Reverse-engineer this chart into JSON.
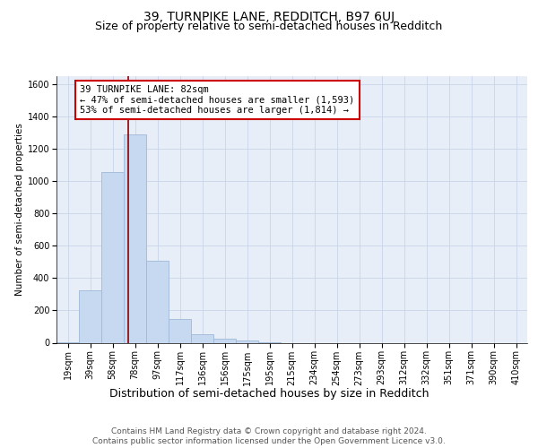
{
  "title": "39, TURNPIKE LANE, REDDITCH, B97 6UJ",
  "subtitle": "Size of property relative to semi-detached houses in Redditch",
  "xlabel": "Distribution of semi-detached houses by size in Redditch",
  "ylabel": "Number of semi-detached properties",
  "categories": [
    "19sqm",
    "39sqm",
    "58sqm",
    "78sqm",
    "97sqm",
    "117sqm",
    "136sqm",
    "156sqm",
    "175sqm",
    "195sqm",
    "215sqm",
    "234sqm",
    "254sqm",
    "273sqm",
    "293sqm",
    "312sqm",
    "332sqm",
    "351sqm",
    "371sqm",
    "390sqm",
    "410sqm"
  ],
  "values": [
    5,
    325,
    1055,
    1290,
    510,
    145,
    50,
    25,
    15,
    5,
    0,
    0,
    0,
    0,
    0,
    0,
    0,
    0,
    0,
    0,
    0
  ],
  "bar_color": "#c6d9f0",
  "bar_edge_color": "#a0b8d8",
  "property_line_color": "#8b0000",
  "annotation_text": "39 TURNPIKE LANE: 82sqm\n← 47% of semi-detached houses are smaller (1,593)\n53% of semi-detached houses are larger (1,814) →",
  "annotation_box_color": "white",
  "annotation_box_edge_color": "#cc0000",
  "ylim": [
    0,
    1650
  ],
  "yticks": [
    0,
    200,
    400,
    600,
    800,
    1000,
    1200,
    1400,
    1600
  ],
  "grid_color": "#c8d4e8",
  "background_color": "#e8eef8",
  "footer_text": "Contains HM Land Registry data © Crown copyright and database right 2024.\nContains public sector information licensed under the Open Government Licence v3.0.",
  "title_fontsize": 10,
  "subtitle_fontsize": 9,
  "xlabel_fontsize": 9,
  "ylabel_fontsize": 7.5,
  "tick_fontsize": 7,
  "annotation_fontsize": 7.5,
  "footer_fontsize": 6.5
}
